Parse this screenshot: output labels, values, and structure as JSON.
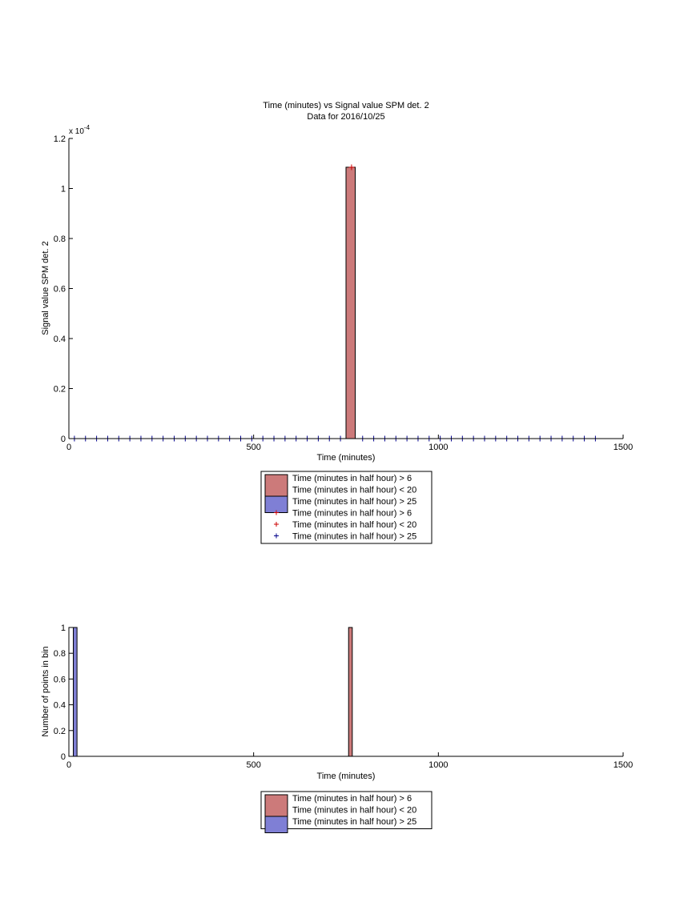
{
  "colors": {
    "red_fill": "#cc7a7a",
    "blue_fill": "#7f7fd5",
    "red_marker": "#cc0000",
    "blue_marker": "#00008b",
    "axis": "#000000"
  },
  "chart_data": [
    {
      "type": "bar",
      "title": "Time (minutes) vs Signal value SPM det. 2",
      "subtitle": "Data for 2016/10/25",
      "xlabel": "Time (minutes)",
      "ylabel": "Signal value SPM det. 2",
      "y_exponent_label": "x 10",
      "y_exponent_power": "-4",
      "xlim": [
        0,
        1500
      ],
      "ylim": [
        0,
        1.2
      ],
      "xticks": [
        0,
        500,
        1000,
        1500
      ],
      "xtick_labels": [
        "0",
        "500",
        "1000",
        "1500"
      ],
      "yticks": [
        0,
        0.2,
        0.4,
        0.6,
        0.8,
        1,
        1.2
      ],
      "ytick_labels": [
        "0",
        "0.2",
        "0.4",
        "0.6",
        "0.8",
        "1",
        "1.2"
      ],
      "grid": false,
      "legend_position": "below plot",
      "bars": [
        {
          "series": "red",
          "x_start": 750,
          "x_end": 775,
          "value": 1.085
        }
      ],
      "markers": [
        {
          "series": "red",
          "x": [
            765
          ],
          "y": [
            1.085
          ]
        },
        {
          "series": "blue",
          "x": [
            15,
            45,
            75,
            105,
            135,
            165,
            195,
            225,
            255,
            285,
            315,
            345,
            375,
            405,
            435,
            465,
            495,
            525,
            555,
            585,
            615,
            645,
            675,
            705,
            735,
            795,
            825,
            855,
            885,
            915,
            945,
            975,
            1005,
            1035,
            1065,
            1095,
            1125,
            1155,
            1185,
            1215,
            1245,
            1275,
            1305,
            1335,
            1365,
            1395,
            1425
          ],
          "y": 0
        }
      ],
      "legend": [
        {
          "type": "patch",
          "series": "red",
          "label": "Time (minutes in half hour) > 6"
        },
        {
          "type": "patch",
          "series": "red",
          "label": "Time (minutes in half hour) < 20"
        },
        {
          "type": "patch",
          "series": "blue",
          "label": "Time (minutes in half hour) > 25"
        },
        {
          "type": "marker",
          "series": "red",
          "label": "Time (minutes in half hour) > 6"
        },
        {
          "type": "marker",
          "series": "red",
          "label": "Time (minutes in half hour) < 20"
        },
        {
          "type": "marker",
          "series": "blue",
          "label": "Time (minutes in half hour) > 25"
        }
      ]
    },
    {
      "type": "bar",
      "title": "",
      "xlabel": "Time (minutes)",
      "ylabel": "Number of points in bin",
      "xlim": [
        0,
        1500
      ],
      "ylim": [
        0,
        1
      ],
      "xticks": [
        0,
        500,
        1000,
        1500
      ],
      "xtick_labels": [
        "0",
        "500",
        "1000",
        "1500"
      ],
      "yticks": [
        0,
        0.2,
        0.4,
        0.6,
        0.8,
        1
      ],
      "ytick_labels": [
        "0",
        "0.2",
        "0.4",
        "0.6",
        "0.8",
        "1"
      ],
      "grid": false,
      "legend_position": "below plot",
      "bars": [
        {
          "series": "none",
          "x_start": 0,
          "x_end": 12,
          "value": 1
        },
        {
          "series": "blue",
          "x_start": 12,
          "x_end": 22,
          "value": 1
        },
        {
          "series": "red",
          "x_start": 757,
          "x_end": 767,
          "value": 1
        }
      ],
      "legend": [
        {
          "type": "patch",
          "series": "red",
          "label": "Time (minutes in half hour) > 6"
        },
        {
          "type": "patch",
          "series": "red",
          "label": "Time (minutes in half hour) < 20"
        },
        {
          "type": "patch",
          "series": "blue",
          "label": "Time (minutes in half hour) > 25"
        }
      ]
    }
  ]
}
